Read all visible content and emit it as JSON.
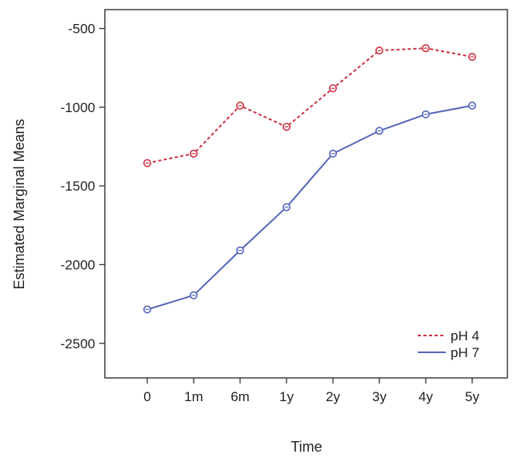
{
  "chart_data": {
    "type": "line",
    "title": "",
    "xlabel": "Time",
    "ylabel": "Estimated Marginal Means",
    "categories": [
      "0",
      "1m",
      "6m",
      "1y",
      "2y",
      "3y",
      "4y",
      "5y"
    ],
    "yticks": [
      -500,
      -1000,
      -1500,
      -2000,
      -2500
    ],
    "ytick_labels": [
      "-500",
      "-1000",
      "-1500",
      "-2000",
      "-2500"
    ],
    "ylim": [
      -2720,
      -380
    ],
    "grid": false,
    "legend_position": "bottom-right",
    "series": [
      {
        "name": "pH 4",
        "color": "#cc3344",
        "dash": "dashed",
        "values": [
          -1355,
          -1295,
          -990,
          -1125,
          -880,
          -640,
          -625,
          -680
        ]
      },
      {
        "name": "pH 7",
        "color": "#5566bb",
        "dash": "solid",
        "values": [
          -2285,
          -2195,
          -1910,
          -1635,
          -1295,
          -1150,
          -1045,
          -990
        ]
      }
    ]
  }
}
